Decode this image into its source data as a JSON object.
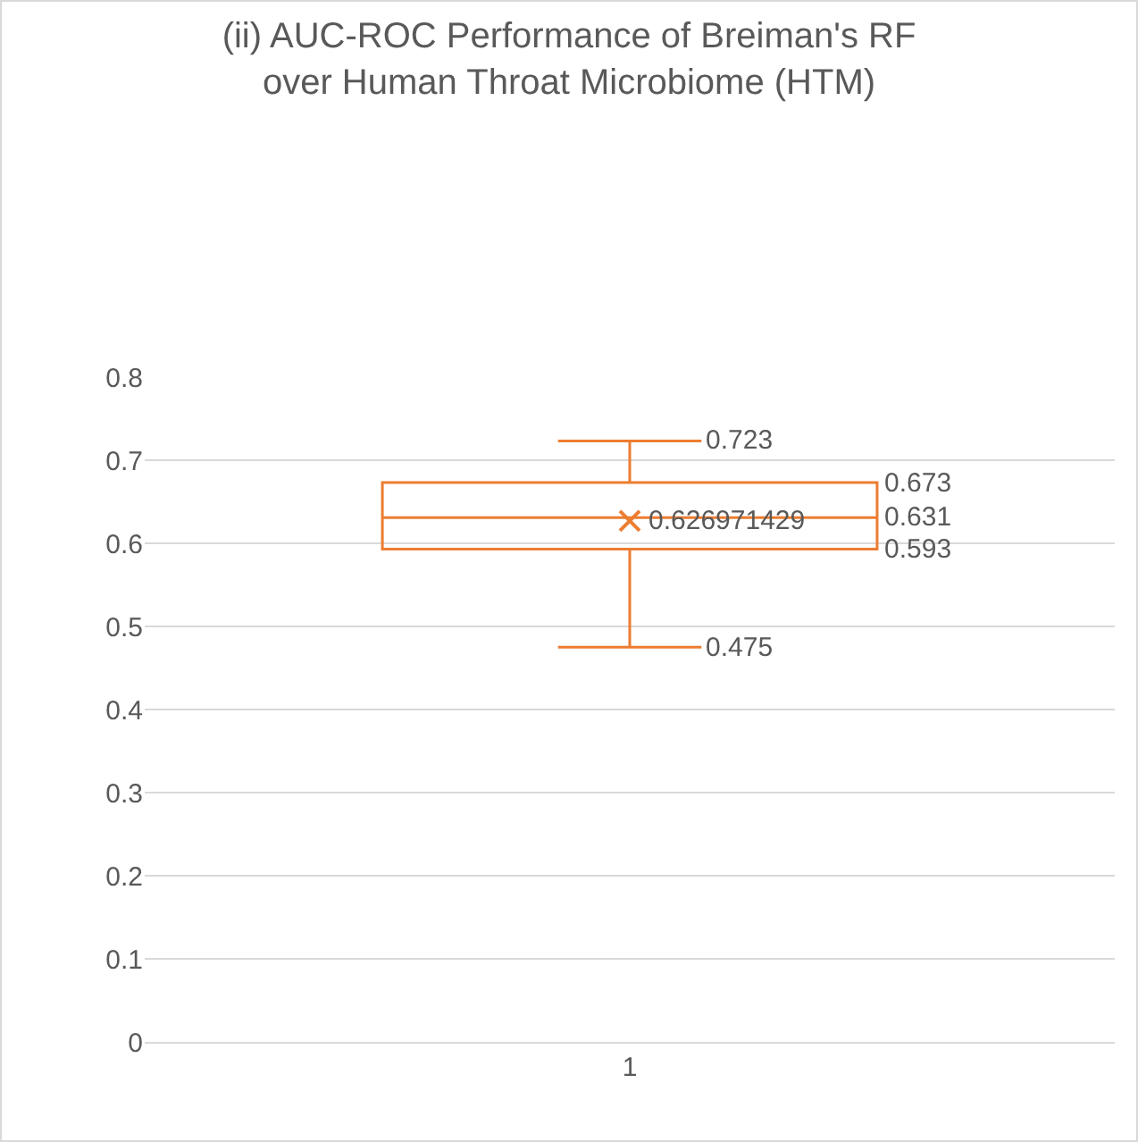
{
  "chart_data": {
    "type": "box",
    "title": "(ii) AUC-ROC Performance of Breiman's RF over Human Throat Microbiome (HTM)",
    "categories": [
      "1"
    ],
    "boxes": [
      {
        "low": 0.475,
        "q1": 0.593,
        "median": 0.631,
        "q3": 0.673,
        "high": 0.723,
        "mean": 0.626971429
      }
    ],
    "color": "#ed7d31",
    "ylim": [
      0,
      0.8
    ],
    "yticks": [
      0,
      0.1,
      0.2,
      0.3,
      0.4,
      0.5,
      0.6,
      0.7,
      0.8
    ],
    "grid": "y",
    "marker": "cross",
    "annotations": [
      {
        "text": "0.723",
        "x": "1",
        "y": 0.723
      },
      "0.673",
      "0.631",
      "0.593",
      {
        "text": "0.475",
        "x": "1",
        "y": 0.475
      },
      {
        "text": "0.626971429",
        "x": "1",
        "y": 0.626971429
      }
    ]
  }
}
